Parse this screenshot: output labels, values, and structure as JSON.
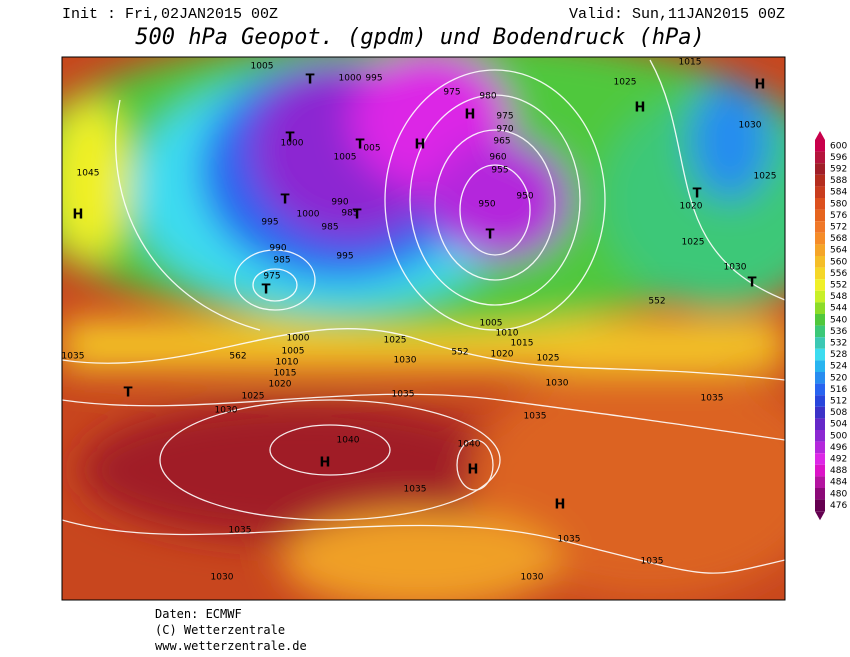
{
  "header": {
    "init": "Init : Fri,02JAN2015 00Z",
    "valid": "Valid: Sun,11JAN2015 00Z",
    "title": "500 hPa Geopot. (gpdm) und Bodendruck (hPa)"
  },
  "legend": {
    "levels": [
      600,
      596,
      592,
      588,
      584,
      580,
      576,
      572,
      568,
      564,
      560,
      556,
      552,
      548,
      544,
      540,
      536,
      532,
      528,
      524,
      520,
      516,
      512,
      508,
      504,
      500,
      496,
      492,
      488,
      484,
      480,
      476
    ],
    "colors": [
      "#c8004b",
      "#b4143c",
      "#a01e28",
      "#b42d1e",
      "#c83c1e",
      "#dc501e",
      "#e6641e",
      "#f07828",
      "#f58c28",
      "#f5a528",
      "#f5be28",
      "#f5d728",
      "#f0f028",
      "#c8f028",
      "#8cdc28",
      "#50c83c",
      "#3cc878",
      "#3cc8b4",
      "#3cdcf0",
      "#28b4f0",
      "#288cf0",
      "#2864f0",
      "#2846dc",
      "#3c32c8",
      "#6428c8",
      "#8c28d2",
      "#b428dc",
      "#dc28e6",
      "#dc14c8",
      "#b414a0",
      "#8c0a78",
      "#640050"
    ]
  },
  "map_labels": [
    "1005",
    "T",
    "1000",
    "995",
    "975",
    "980",
    "H",
    "1025",
    "H",
    "1015",
    "H",
    "1030",
    "T",
    "1000",
    "T",
    "1005",
    "005",
    "H",
    "975",
    "970",
    "965",
    "960",
    "955",
    "950",
    "950",
    "T",
    "1045",
    "H",
    "T",
    "1000",
    "990",
    "985",
    "T",
    "995",
    "985",
    "990",
    "985",
    "975",
    "T",
    "995",
    "1025",
    "T",
    "1020",
    "1025",
    "1030",
    "T",
    "552",
    "1000",
    "1005",
    "1010",
    "1015",
    "1020",
    "562",
    "1025",
    "1030",
    "552",
    "1020",
    "1015",
    "1025",
    "1010",
    "1005",
    "1035",
    "T",
    "1025",
    "1030",
    "1035",
    "1030",
    "1035",
    "1035",
    "1040",
    "H",
    "1040",
    "H",
    "1035",
    "H",
    "1035",
    "1035",
    "1035",
    "1030",
    "1030"
  ],
  "footer": {
    "source": "Daten: ECMWF",
    "copyright": "(C) Wetterzentrale",
    "url": "www.wetterzentrale.de"
  }
}
